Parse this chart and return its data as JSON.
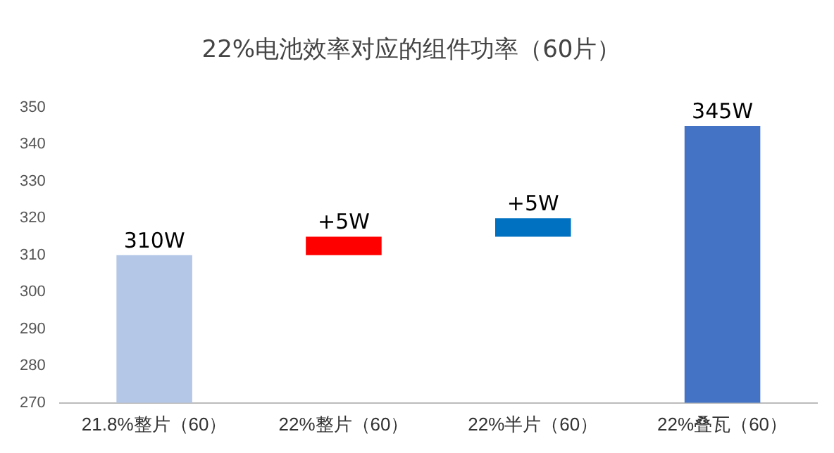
{
  "chart_data": {
    "type": "bar",
    "title": "22%电池效率对应的组件功率（60片）",
    "categories": [
      "21.8%整片（60）",
      "22%整片（60）",
      "22%半片（60）",
      "22%叠瓦（60）"
    ],
    "values": [
      310,
      5,
      5,
      345
    ],
    "base": [
      null,
      310,
      315,
      null
    ],
    "colors": [
      "#b4c7e7",
      "#ff0000",
      "#0070c0",
      "#4472c4"
    ],
    "value_labels": [
      "310W",
      "+5W",
      "+5W",
      "345W"
    ],
    "ylim": [
      270,
      350
    ],
    "yticks": [
      270,
      280,
      290,
      300,
      310,
      320,
      330,
      340,
      350
    ],
    "grid": false,
    "legend": false
  }
}
